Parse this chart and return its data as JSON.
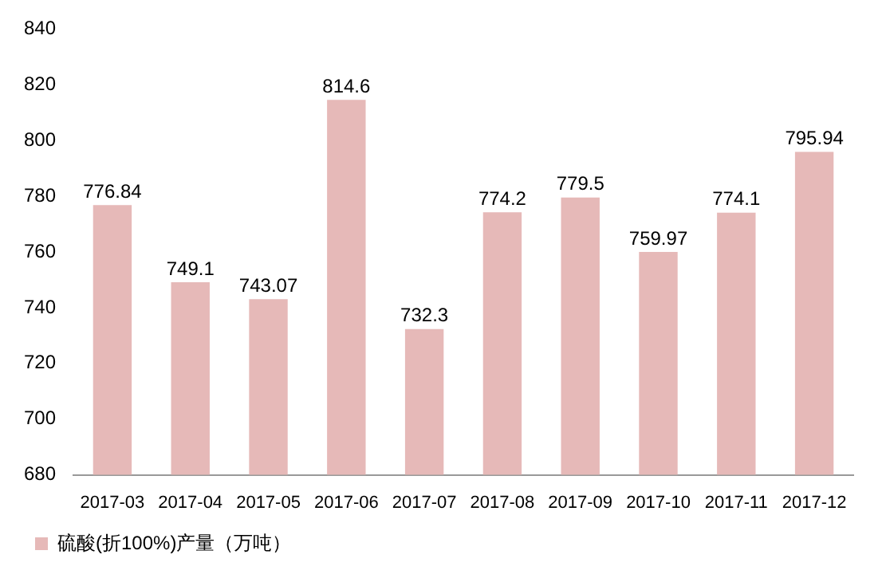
{
  "chart_data": {
    "type": "bar",
    "categories": [
      "2017-03",
      "2017-04",
      "2017-05",
      "2017-06",
      "2017-07",
      "2017-08",
      "2017-09",
      "2017-10",
      "2017-11",
      "2017-12"
    ],
    "series": [
      {
        "name": "硫酸(折100%)产量（万吨）",
        "color": "#e6b9b8",
        "values": [
          776.84,
          749.1,
          743.07,
          814.6,
          732.3,
          774.2,
          779.5,
          759.97,
          774.1,
          795.94
        ]
      }
    ],
    "ylim": [
      680,
      840
    ],
    "yticks": [
      680,
      700,
      720,
      740,
      760,
      780,
      800,
      820,
      840
    ],
    "grid": false,
    "legend": "bottom",
    "data_labels": true
  }
}
